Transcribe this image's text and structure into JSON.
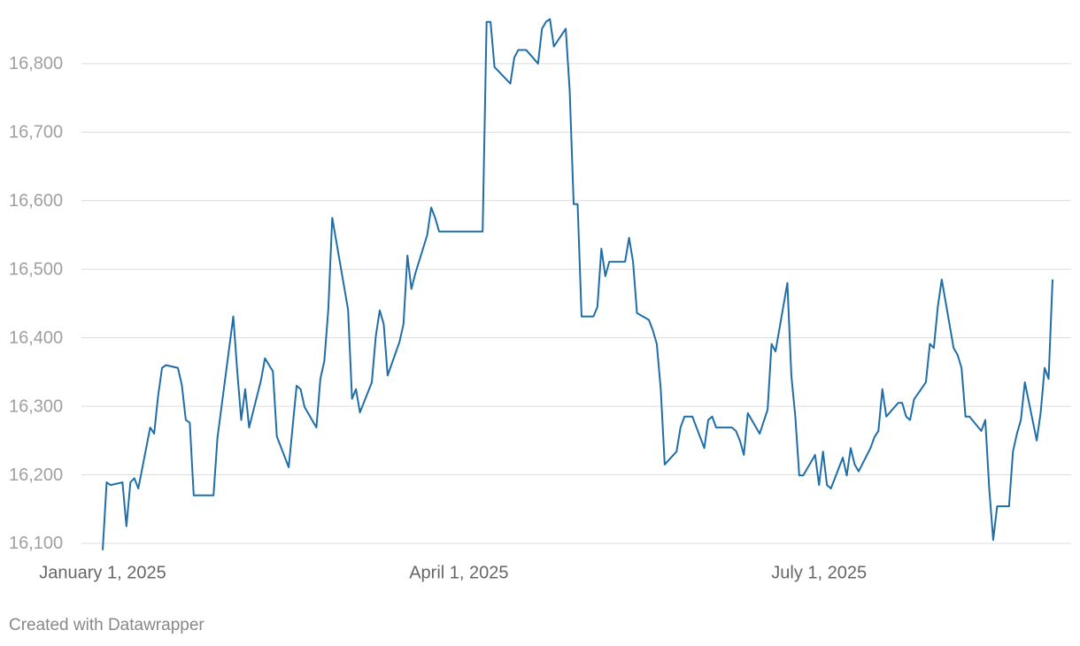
{
  "chart_data": {
    "type": "line",
    "credit": "Created with Datawrapper",
    "x": [
      "2025-01-01",
      "2025-01-02",
      "2025-01-03",
      "2025-01-06",
      "2025-01-07",
      "2025-01-08",
      "2025-01-09",
      "2025-01-10",
      "2025-01-13",
      "2025-01-14",
      "2025-01-15",
      "2025-01-16",
      "2025-01-17",
      "2025-01-20",
      "2025-01-21",
      "2025-01-22",
      "2025-01-23",
      "2025-01-24",
      "2025-01-29",
      "2025-01-30",
      "2025-02-03",
      "2025-02-04",
      "2025-02-05",
      "2025-02-06",
      "2025-02-07",
      "2025-02-10",
      "2025-02-11",
      "2025-02-13",
      "2025-02-14",
      "2025-02-17",
      "2025-02-19",
      "2025-02-20",
      "2025-02-21",
      "2025-02-24",
      "2025-02-25",
      "2025-02-26",
      "2025-02-27",
      "2025-02-28",
      "2025-03-04",
      "2025-03-05",
      "2025-03-06",
      "2025-03-07",
      "2025-03-10",
      "2025-03-11",
      "2025-03-12",
      "2025-03-13",
      "2025-03-14",
      "2025-03-17",
      "2025-03-18",
      "2025-03-19",
      "2025-03-20",
      "2025-03-21",
      "2025-03-24",
      "2025-03-25",
      "2025-03-26",
      "2025-03-27",
      "2025-04-07",
      "2025-04-08",
      "2025-04-09",
      "2025-04-10",
      "2025-04-14",
      "2025-04-15",
      "2025-04-16",
      "2025-04-18",
      "2025-04-21",
      "2025-04-22",
      "2025-04-23",
      "2025-04-24",
      "2025-04-25",
      "2025-04-28",
      "2025-04-29",
      "2025-04-30",
      "2025-05-01",
      "2025-05-02",
      "2025-05-05",
      "2025-05-06",
      "2025-05-07",
      "2025-05-08",
      "2025-05-09",
      "2025-05-13",
      "2025-05-14",
      "2025-05-15",
      "2025-05-16",
      "2025-05-19",
      "2025-05-20",
      "2025-05-21",
      "2025-05-22",
      "2025-05-23",
      "2025-05-26",
      "2025-05-27",
      "2025-05-28",
      "2025-05-30",
      "2025-06-02",
      "2025-06-03",
      "2025-06-04",
      "2025-06-05",
      "2025-06-09",
      "2025-06-10",
      "2025-06-11",
      "2025-06-12",
      "2025-06-13",
      "2025-06-16",
      "2025-06-18",
      "2025-06-19",
      "2025-06-20",
      "2025-06-23",
      "2025-06-24",
      "2025-06-25",
      "2025-06-26",
      "2025-06-27",
      "2025-06-30",
      "2025-07-01",
      "2025-07-02",
      "2025-07-03",
      "2025-07-04",
      "2025-07-07",
      "2025-07-08",
      "2025-07-09",
      "2025-07-10",
      "2025-07-11",
      "2025-07-14",
      "2025-07-15",
      "2025-07-16",
      "2025-07-17",
      "2025-07-18",
      "2025-07-21",
      "2025-07-22",
      "2025-07-23",
      "2025-07-24",
      "2025-07-25",
      "2025-07-28",
      "2025-07-29",
      "2025-07-30",
      "2025-07-31",
      "2025-08-01",
      "2025-08-04",
      "2025-08-05",
      "2025-08-06",
      "2025-08-07",
      "2025-08-08",
      "2025-08-11",
      "2025-08-12",
      "2025-08-13",
      "2025-08-14",
      "2025-08-15",
      "2025-08-18",
      "2025-08-19",
      "2025-08-20",
      "2025-08-21",
      "2025-08-22",
      "2025-08-25",
      "2025-08-26",
      "2025-08-27",
      "2025-08-28",
      "2025-08-29"
    ],
    "series": [
      {
        "color": "#1f6ea8",
        "values": [
          16090,
          16189,
          16185,
          16189,
          16125,
          16189,
          16195,
          16180,
          16269,
          16260,
          16315,
          16356,
          16360,
          16356,
          16331,
          16280,
          16276,
          16170,
          16170,
          16254,
          16431,
          16351,
          16280,
          16325,
          16269,
          16338,
          16370,
          16351,
          16256,
          16211,
          16330,
          16325,
          16299,
          16269,
          16340,
          16366,
          16441,
          16575,
          16441,
          16311,
          16325,
          16291,
          16335,
          16402,
          16440,
          16420,
          16345,
          16394,
          16420,
          16520,
          16471,
          16494,
          16550,
          16590,
          16575,
          16555,
          16555,
          16861,
          16861,
          16795,
          16771,
          16809,
          16820,
          16820,
          16800,
          16851,
          16861,
          16865,
          16825,
          16851,
          16760,
          16595,
          16595,
          16431,
          16431,
          16445,
          16530,
          16490,
          16511,
          16511,
          16546,
          16511,
          16436,
          16426,
          16411,
          16391,
          16325,
          16215,
          16234,
          16269,
          16285,
          16285,
          16239,
          16280,
          16285,
          16269,
          16269,
          16264,
          16250,
          16229,
          16290,
          16260,
          16295,
          16391,
          16380,
          16480,
          16345,
          16285,
          16199,
          16199,
          16229,
          16185,
          16234,
          16185,
          16180,
          16225,
          16199,
          16239,
          16215,
          16205,
          16239,
          16255,
          16264,
          16325,
          16285,
          16305,
          16305,
          16285,
          16280,
          16310,
          16335,
          16391,
          16385,
          16445,
          16485,
          16385,
          16375,
          16356,
          16285,
          16285,
          16264,
          16280,
          16180,
          16105,
          16154,
          16154,
          16234,
          16260,
          16280,
          16335,
          16250,
          16291,
          16356,
          16340,
          16485
        ]
      }
    ],
    "xlim": [
      "2025-01-01",
      "2025-08-29"
    ],
    "xticks": [
      {
        "value": "2025-01-01",
        "label": "January 1, 2025"
      },
      {
        "value": "2025-04-01",
        "label": "April 1, 2025"
      },
      {
        "value": "2025-07-01",
        "label": "July 1, 2025"
      }
    ],
    "ylim": [
      16090,
      16865
    ],
    "yticks": [
      {
        "value": 16100,
        "label": "16,100"
      },
      {
        "value": 16200,
        "label": "16,200"
      },
      {
        "value": 16300,
        "label": "16,300"
      },
      {
        "value": 16400,
        "label": "16,400"
      },
      {
        "value": 16500,
        "label": "16,500"
      },
      {
        "value": 16600,
        "label": "16,600"
      },
      {
        "value": 16700,
        "label": "16,700"
      },
      {
        "value": 16800,
        "label": "16,800"
      }
    ],
    "grid": true
  }
}
